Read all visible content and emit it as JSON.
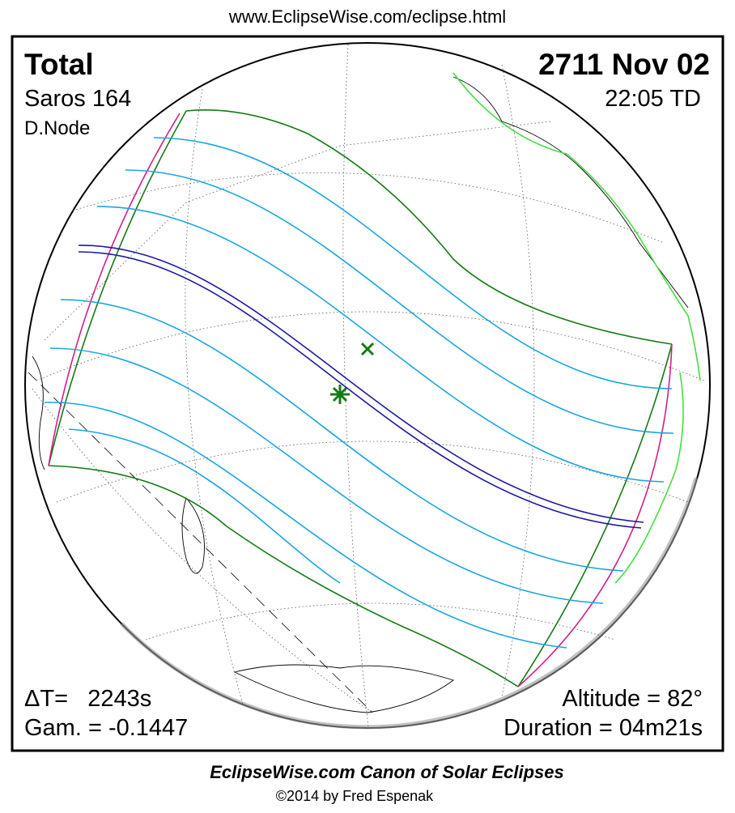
{
  "header": {
    "url": "www.EclipseWise.com/eclipse.html"
  },
  "panel": {
    "type": "Total",
    "date": "2711 Nov 02",
    "saros": "Saros 164",
    "time": "22:05 TD",
    "node": "D.Node",
    "delta_t": "ΔT=   2243s",
    "gamma": "Gam. = -0.1447",
    "altitude": "Altitude = 82°",
    "duration": "Duration = 04m21s"
  },
  "footer": {
    "title": "EclipseWise.com Canon of Solar Eclipses",
    "copyright": "©2014 by Fred Espenak"
  }
}
